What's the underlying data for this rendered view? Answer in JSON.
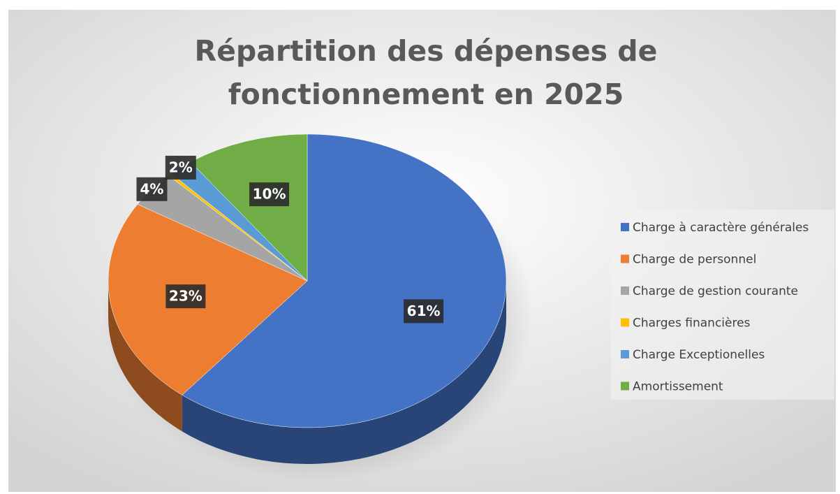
{
  "chart_data": {
    "type": "pie",
    "title": "Répartition des dépenses de fonctionnement en 2025",
    "categories": [
      "Charge à caractère générales",
      "Charge de personnel",
      "Charge de gestion courante",
      "Charges financières",
      "Charge Exceptionelles",
      "Amortissement"
    ],
    "values": [
      61,
      23,
      4,
      0.3,
      2,
      10
    ],
    "value_labels": [
      "61%",
      "23%",
      "4%",
      null,
      "2%",
      "10%"
    ],
    "colors": [
      "#4472c4",
      "#ed7d31",
      "#a5a5a5",
      "#ffc000",
      "#5b9bd5",
      "#70ad47"
    ],
    "legend": "right"
  }
}
